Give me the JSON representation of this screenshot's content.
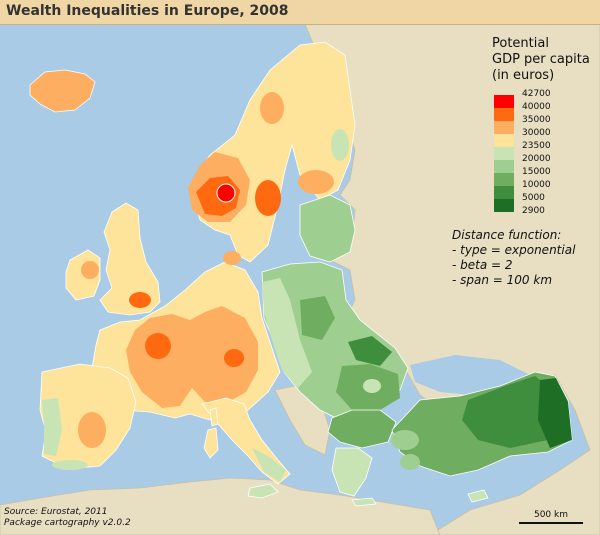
{
  "title": "Wealth Inequalities in Europe, 2008",
  "legend": {
    "title_lines": [
      "Potential",
      "GDP per capita",
      "(in euros)"
    ],
    "breaks": [
      "42700",
      "40000",
      "35000",
      "30000",
      "23500",
      "20000",
      "15000",
      "10000",
      "5000",
      "2900"
    ],
    "colors": [
      "#ff0000",
      "#ff6a10",
      "#fdae60",
      "#fde49a",
      "#c9e4b4",
      "#9fcf90",
      "#6fae60",
      "#3e8e3e",
      "#1e6e26"
    ]
  },
  "distance_function": {
    "lines": [
      "Distance function:",
      "- type = exponential",
      "- beta = 2",
      "- span = 100 km"
    ]
  },
  "source": {
    "lines": [
      "Source: Eurostat, 2011",
      "Package cartography v2.0.2"
    ]
  },
  "scale_bar": {
    "label": "500 km"
  },
  "palette": {
    "sea": "#a9cbe6",
    "land_outside": "#e8dec2",
    "title_bar": "#f0d6a5"
  }
}
